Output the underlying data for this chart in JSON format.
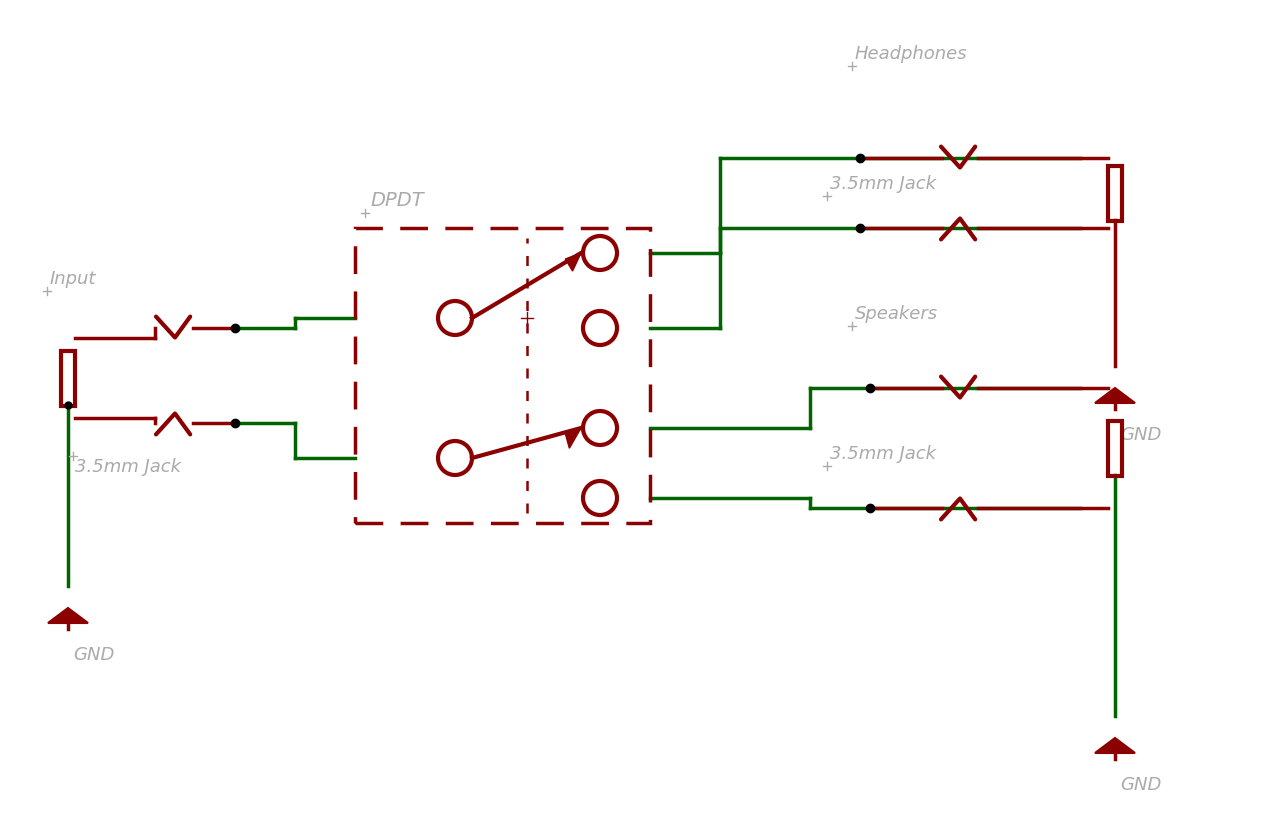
{
  "bg_color": "#ffffff",
  "dark_red": "#8B0000",
  "green": "#006400",
  "gray": "#aaaaaa",
  "fig_width": 12.79,
  "fig_height": 8.18,
  "labels": {
    "input": "Input",
    "jack_left": "3.5mm Jack",
    "dpdt": "DPDT",
    "headphones": "Headphones",
    "jack_right_top": "3.5mm Jack",
    "speakers": "Speakers",
    "jack_right_bot": "3.5mm Jack",
    "gnd": "GND"
  }
}
